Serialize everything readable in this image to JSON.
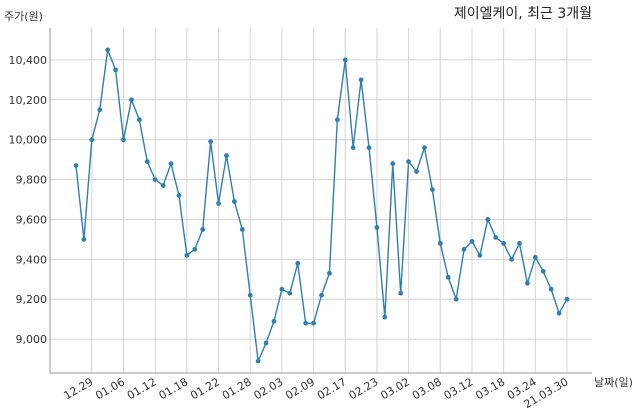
{
  "chart_data": {
    "type": "line",
    "title": "제이엘케이, 최근 3개월",
    "ylabel": "주가(원)",
    "xlabel": "날짜(일)",
    "ylim": [
      8830,
      10560
    ],
    "yticks": [
      9000,
      9200,
      9400,
      9600,
      9800,
      10000,
      10200,
      10400
    ],
    "ytick_labels": [
      "9,000",
      "9,200",
      "9,400",
      "9,600",
      "9,800",
      "10,000",
      "10,200",
      "10,400"
    ],
    "grid": true,
    "color": "#2f7fb0",
    "x": [
      "12.24",
      "12.28",
      "12.29",
      "12.30",
      "01.04",
      "01.05",
      "01.06",
      "01.07",
      "01.08",
      "01.11",
      "01.12",
      "01.13",
      "01.14",
      "01.15",
      "01.18",
      "01.19",
      "01.20",
      "01.21",
      "01.22",
      "01.25",
      "01.26",
      "01.27",
      "01.28",
      "01.29",
      "02.01",
      "02.02",
      "02.03",
      "02.04",
      "02.05",
      "02.08",
      "02.09",
      "02.10",
      "02.15",
      "02.16",
      "02.17",
      "02.18",
      "02.19",
      "02.22",
      "02.23",
      "02.24",
      "02.25",
      "02.26",
      "03.02",
      "03.03",
      "03.04",
      "03.05",
      "03.08",
      "03.09",
      "03.10",
      "03.11",
      "03.12",
      "03.15",
      "03.16",
      "03.17",
      "03.18",
      "03.19",
      "03.22",
      "03.23",
      "03.24",
      "03.25",
      "03.26",
      "03.29",
      "21.03.30"
    ],
    "values": [
      9870,
      9500,
      10000,
      10150,
      10450,
      10350,
      10000,
      10200,
      10100,
      9890,
      9800,
      9770,
      9880,
      9720,
      9420,
      9450,
      9550,
      9990,
      9680,
      9920,
      9690,
      9550,
      9220,
      8890,
      8980,
      9090,
      9250,
      9230,
      9380,
      9080,
      9080,
      9220,
      9330,
      10100,
      10400,
      9960,
      10300,
      9960,
      9560,
      9110,
      9880,
      9230,
      9890,
      9840,
      9960,
      9750,
      9480,
      9310,
      9200,
      9450,
      9490,
      9420,
      9600,
      9510,
      9480,
      9400,
      9480,
      9280,
      9410,
      9340,
      9250,
      9130,
      9200
    ],
    "xtick_labels": [
      "12.29",
      "01.06",
      "01.12",
      "01.18",
      "01.22",
      "01.28",
      "02.03",
      "02.09",
      "02.17",
      "02.23",
      "03.02",
      "03.08",
      "03.12",
      "03.18",
      "03.24",
      "21.03.30"
    ]
  }
}
